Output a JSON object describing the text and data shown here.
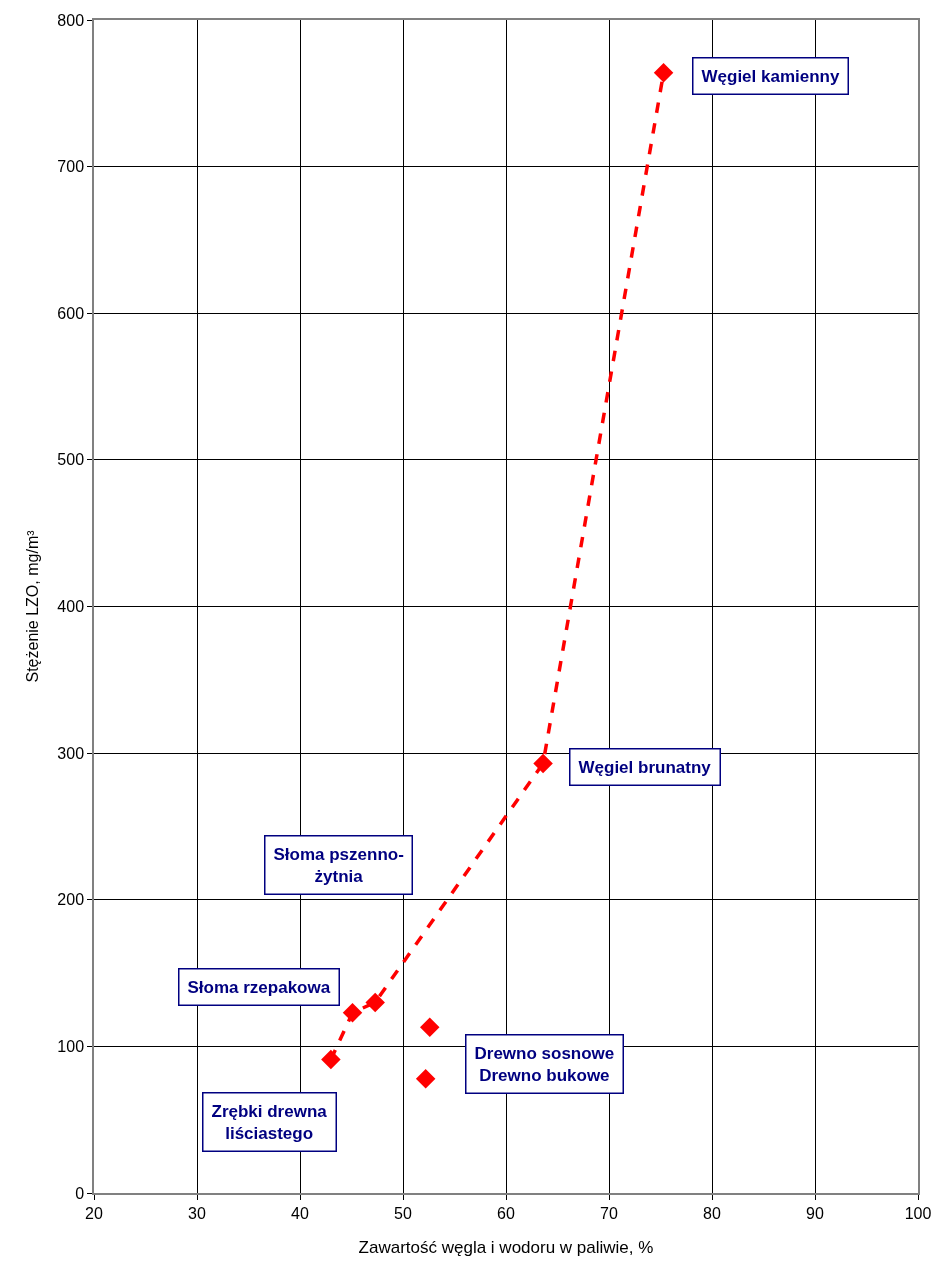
{
  "chart_data": {
    "type": "line",
    "xlabel": "Zawartość węgla i wodoru w paliwie, %",
    "ylabel": "Stężenie LZO, mg/m³",
    "series": [
      {
        "color": "#ff0000",
        "line_style": "dashed",
        "marker": "diamond",
        "x": [
          43.0,
          45.1,
          47.3,
          63.6,
          75.3
        ],
        "values": [
          91,
          123,
          130,
          293,
          764
        ]
      },
      {
        "type": "scatter",
        "color": "#ff0000",
        "marker": "diamond",
        "x": [
          52.6,
          52.2
        ],
        "values": [
          113,
          78
        ]
      }
    ],
    "xlim": [
      20,
      100
    ],
    "xticks": [
      20,
      30,
      40,
      50,
      60,
      70,
      80,
      90,
      100
    ],
    "ylim": [
      0,
      800
    ],
    "yticks": [
      0,
      100,
      200,
      300,
      400,
      500,
      600,
      700,
      800
    ],
    "grid": true,
    "annotations": [
      {
        "text": "Węgiel kamienny",
        "x": 75.3,
        "y": 764
      },
      {
        "text": "Węgiel brunatny",
        "x": 63.6,
        "y": 293
      },
      "Słoma pszenno-\nżytnia",
      {
        "text": "Słoma rzepakowa",
        "x": 45.1,
        "y": 123
      },
      {
        "text": "Zrębki drewna\nliściastego",
        "x": 43.0,
        "y": 91
      },
      {
        "text": "Drewno sosnowe\nDrewno bukowe",
        "x": 52.6,
        "y": 113
      }
    ]
  }
}
